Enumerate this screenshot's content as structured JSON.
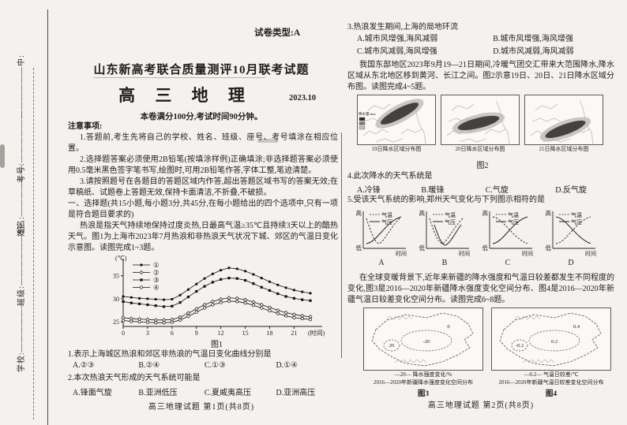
{
  "seal": {
    "fields": [
      "学校:——————",
      "班级:——————班",
      "姓名:——————",
      "考号:——————",
      "——————中:"
    ]
  },
  "page1": {
    "paper_type": "试卷类型:A",
    "title": "山东新高考联合质量测评10月联考试题",
    "subject": "高 三 地 理",
    "date": "2023.10",
    "score_line": "本卷满分100分,考试时间90分钟。",
    "notes_title": "注意事项:",
    "notes": [
      "1.答题前,考生先将自己的学校、姓名、班级、座号、考号填涂在相应位置。",
      "2.选择题答案必须使用2B铅笔(按填涂样例)正确填涂;非选择题答案必须使用0.5毫米黑色签字笔书写,绘图时,可用2B铅笔作答,字体工整,笔迹清楚。",
      "3.请按照题号在各题目的答题区域内作答,超出答题区域书写的答案无效;在草稿纸、试题卷上答题无效,保持卡面清洁,不折叠,不破损。"
    ],
    "section1": "一、选择题(共15小题,每小题3分,共45分,在每小题给出的四个选项中,只有一项是符合题目要求的)",
    "intro_1_3": "热浪是指天气持续地保持过度炎热,日最高气温≥35℃且持续3天以上的酷热天气。图1为上海市2023年7月热浪和非热浪天气状况下城、郊区的气温日变化示意图。读图完成1~3题。",
    "q1": {
      "stem": "1.表示上海城区热浪和郊区非热浪的气温日变化曲线分别是",
      "options": [
        "A.②③",
        "B.②④",
        "C.①③",
        "D.①④"
      ]
    },
    "q2": {
      "stem": "2.本次热浪天气形成的天气系统可能是",
      "options": [
        "A.锋面气旋",
        "B.亚洲低压",
        "C.夏威夷高压",
        "D.亚洲高压"
      ]
    },
    "figure1": {
      "caption": "图1",
      "y_unit": "(℃)",
      "x_unit": "(时间)"
    },
    "footer": "高三地理试题 第1页(共8页)"
  },
  "chart_data": {
    "type": "line",
    "title": "上海市2023年7月热浪和非热浪天气状况下城、郊区的气温日变化示意图",
    "xlabel": "(时间)",
    "ylabel": "(℃)",
    "x": [
      0,
      1,
      2,
      3,
      4,
      5,
      6,
      7,
      8,
      9,
      10,
      11,
      12,
      13,
      14,
      15,
      16,
      17,
      18,
      19,
      20,
      21,
      22,
      23
    ],
    "xticks": [
      0,
      3,
      6,
      9,
      12,
      15,
      18,
      21
    ],
    "yticks": [
      25,
      30,
      35
    ],
    "ylim": [
      24,
      37.5
    ],
    "grid": false,
    "legend_position": "upper-left",
    "series": [
      {
        "name": "①",
        "marker": "filled-circle",
        "values": [
          30.5,
          30.3,
          30.1,
          30.0,
          29.9,
          29.8,
          29.9,
          30.8,
          32.0,
          33.2,
          34.4,
          35.4,
          36.2,
          36.7,
          36.5,
          36.0,
          35.3,
          34.5,
          33.7,
          33.0,
          32.4,
          31.9,
          31.5,
          31.2
        ]
      },
      {
        "name": "②",
        "marker": "open-diamond",
        "values": [
          25.9,
          25.7,
          25.6,
          25.5,
          25.4,
          25.4,
          25.5,
          26.0,
          26.9,
          27.8,
          28.7,
          29.4,
          29.9,
          30.2,
          30.1,
          29.8,
          29.3,
          28.7,
          28.1,
          27.5,
          27.0,
          26.6,
          26.3,
          26.1
        ]
      },
      {
        "name": "③",
        "marker": "filled-square",
        "values": [
          29.4,
          29.1,
          28.9,
          28.7,
          28.5,
          28.3,
          28.4,
          29.2,
          30.4,
          31.6,
          32.7,
          33.6,
          34.2,
          34.5,
          34.4,
          34.0,
          33.3,
          32.5,
          31.8,
          31.1,
          30.5,
          30.1,
          29.8,
          29.6
        ]
      },
      {
        "name": "④",
        "marker": "open-circle",
        "values": [
          25.3,
          25.1,
          25.0,
          24.9,
          24.8,
          24.8,
          24.9,
          25.4,
          26.2,
          27.1,
          28.0,
          28.7,
          29.2,
          29.5,
          29.4,
          29.1,
          28.6,
          28.0,
          27.4,
          26.8,
          26.3,
          25.9,
          25.7,
          25.5
        ]
      }
    ]
  },
  "page2": {
    "q3": {
      "stem": "3.热浪发生期间,上海的局地环流",
      "options": [
        "A.城市风增强,海风减弱",
        "B.城市风增强,海风增强",
        "C.城市风减弱,海风增强",
        "D.城市风减弱,海风减弱"
      ]
    },
    "intro_4_5": "我国东部地区2023年9月19—21日期间,冷暖气团交汇带来大范围降水,降水区域从东北地区移到黄河、长江之间。图2示意19日、20日、21日降水区域分布图。读图完成4~5题。",
    "figure2": {
      "caption": "图2",
      "legend_label": "降水量/mm",
      "panels": [
        {
          "caption": "19日降水区域分布图",
          "band": "northeast"
        },
        {
          "caption": "20日降水区域分布图",
          "band": "central"
        },
        {
          "caption": "21日降水区域分布图",
          "band": "south-central"
        }
      ]
    },
    "q4": {
      "stem": "4.此次降水的天气系统是",
      "options": [
        "A.冷锋",
        "B.暖锋",
        "C.气旋",
        "D.反气旋"
      ]
    },
    "q5": {
      "stem": "5.受该天气系统的影响,郑州天气变化与下列图示相符的是",
      "axis_high": "高",
      "axis_low": "低",
      "axis_x": "时间",
      "legend_temp": "气温",
      "legend_pres": "气压",
      "charts": [
        {
          "label": "A",
          "temp_trend": "fall-rise",
          "pressure_trend": "rise"
        },
        {
          "label": "B",
          "temp_trend": "fall-rise",
          "pressure_trend": "narrow-v"
        },
        {
          "label": "C",
          "temp_trend": "fall",
          "pressure_trend": "rise"
        },
        {
          "label": "D",
          "temp_trend": "rise",
          "pressure_trend": "fall"
        }
      ]
    },
    "intro_6_8": "在全球变暖背景下,近年来新疆的降水强度和气温日较差都发生不同程度的变化,图3是2016—2020年新疆降水强度变化空间分布、图4是2016—2020年新疆气温日较差变化空间分布。读图完成6~8题。",
    "figure3": {
      "legend": "—20— 降水强度变化/%",
      "caption_line": "2016—2020年新疆降水强度变化空间分布",
      "caption": "图3",
      "contour_labels": [
        "-20",
        "20",
        "0"
      ]
    },
    "figure4": {
      "legend": "—0.2— 气温日较差/℃",
      "caption_line": "2016—2020年新疆气温日较差变化空间分布",
      "caption": "图4",
      "contour_labels": [
        "0.2",
        "-0.2",
        "0.4"
      ]
    },
    "footer": "高三地理试题 第2页(共8页)"
  }
}
